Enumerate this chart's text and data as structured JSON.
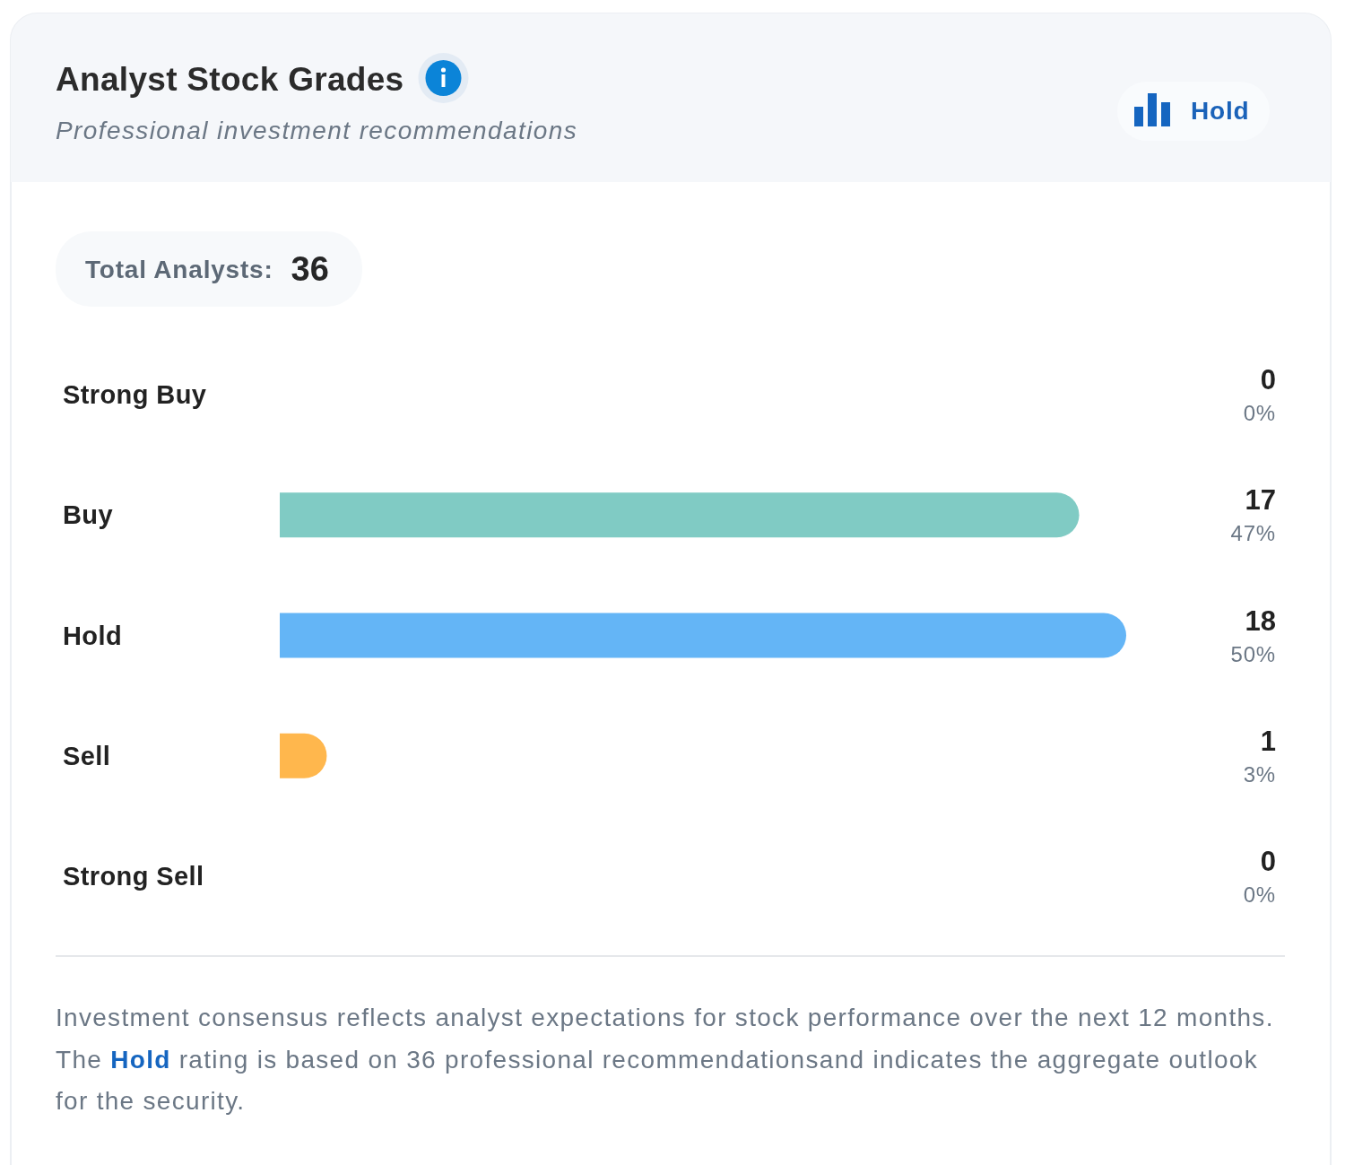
{
  "chart_data": {
    "type": "bar",
    "orientation": "horizontal",
    "title": "Analyst Stock Grades",
    "subtitle": "Professional investment recommendations",
    "categories": [
      "Strong Buy",
      "Buy",
      "Hold",
      "Sell",
      "Strong Sell"
    ],
    "values": [
      0,
      17,
      18,
      1,
      0
    ],
    "colors": [
      null,
      "#80cbc4",
      "#64b5f6",
      "#ffb74d",
      null
    ],
    "data_labels": true,
    "annotations": [
      "0%",
      "47%",
      "50%",
      "3%",
      "0%",
      "Hold",
      "Total Analysts:",
      "36",
      "Investment consensus reflects analyst expectations for stock performance over the next 12 months.",
      "The",
      "Hold",
      "rating is based on 36 professional recommendationsand indicates the aggregate outlook",
      "for the security."
    ]
  }
}
